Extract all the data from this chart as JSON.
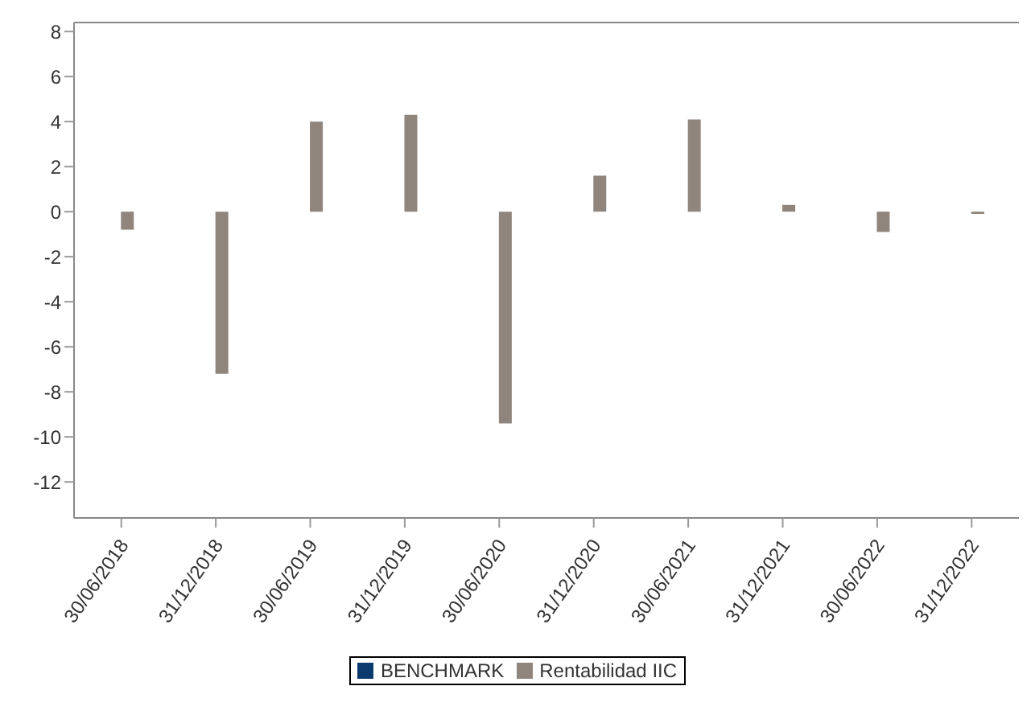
{
  "chart_data": {
    "type": "bar",
    "categories": [
      "30/06/2018",
      "31/12/2018",
      "30/06/2019",
      "31/12/2019",
      "30/06/2020",
      "31/12/2020",
      "30/06/2021",
      "31/12/2021",
      "30/06/2022",
      "31/12/2022"
    ],
    "series": [
      {
        "name": "BENCHMARK",
        "color": "#0b3a6e",
        "values": [
          null,
          null,
          null,
          null,
          null,
          null,
          null,
          null,
          null,
          null
        ]
      },
      {
        "name": "Rentabilidad IIC",
        "color": "#8f857d",
        "values": [
          -0.8,
          -7.2,
          4.0,
          4.3,
          -9.4,
          1.6,
          4.1,
          0.3,
          -0.9,
          -0.1
        ]
      }
    ],
    "ylim": [
      -13.6,
      8.4
    ],
    "yticks": [
      -12,
      -10,
      -8,
      -6,
      -4,
      -2,
      0,
      2,
      4,
      6,
      8
    ],
    "legend": "bottom"
  }
}
